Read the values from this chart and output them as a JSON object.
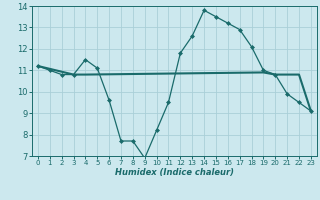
{
  "xlabel": "Humidex (Indice chaleur)",
  "ylabel": "",
  "bg_color": "#cce8ee",
  "grid_color": "#aacfd8",
  "line_color": "#1a6b6b",
  "xlim": [
    -0.5,
    23.5
  ],
  "ylim": [
    7,
    14
  ],
  "xticks": [
    0,
    1,
    2,
    3,
    4,
    5,
    6,
    7,
    8,
    9,
    10,
    11,
    12,
    13,
    14,
    15,
    16,
    17,
    18,
    19,
    20,
    21,
    22,
    23
  ],
  "yticks": [
    7,
    8,
    9,
    10,
    11,
    12,
    13,
    14
  ],
  "line1_x": [
    0,
    1,
    2,
    3,
    4,
    5,
    6,
    7,
    8,
    9,
    10,
    11,
    12,
    13,
    14,
    15,
    16,
    17,
    18,
    19,
    20,
    21,
    22,
    23
  ],
  "line1_y": [
    11.2,
    11.0,
    10.8,
    10.8,
    11.5,
    11.1,
    9.6,
    7.7,
    7.7,
    6.9,
    8.2,
    9.5,
    11.8,
    12.6,
    13.8,
    13.5,
    13.2,
    12.9,
    12.1,
    11.0,
    10.8,
    9.9,
    9.5,
    9.1
  ],
  "line2_x": [
    0,
    3,
    4,
    19,
    20,
    21,
    22,
    23
  ],
  "line2_y": [
    11.2,
    10.8,
    10.8,
    10.9,
    10.8,
    10.8,
    10.8,
    9.1
  ]
}
